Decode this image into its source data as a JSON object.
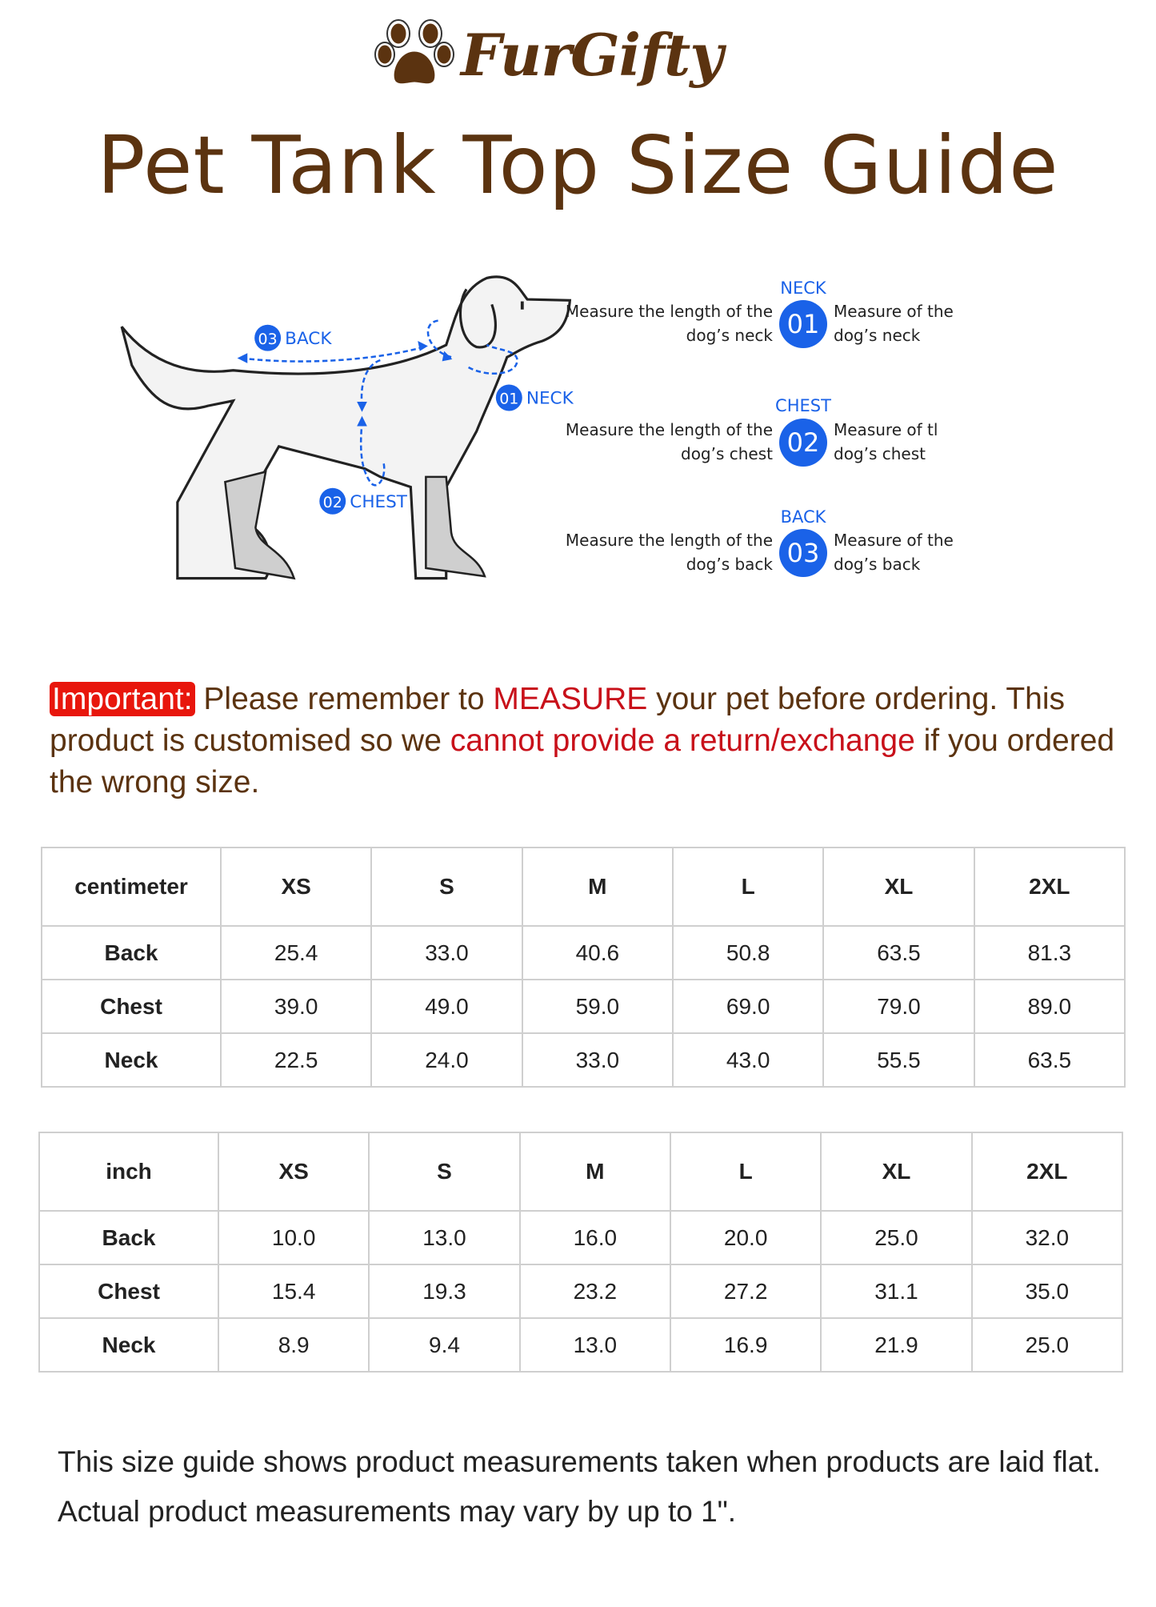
{
  "brand": {
    "name": "FurGifty",
    "icon": "paw-icon",
    "color": "#5b3310"
  },
  "title": "Pet Tank Top Size Guide",
  "diagram": {
    "labels": {
      "back": "BACK",
      "neck": "NECK",
      "chest": "CHEST",
      "back_num": "03",
      "neck_num": "01",
      "chest_num": "02"
    },
    "accent": "#1a62e8",
    "steps": [
      {
        "label": "NECK",
        "num": "01",
        "left": "Measure the length of the dog’s neck",
        "right": "Measure of the dog’s neck"
      },
      {
        "label": "CHEST",
        "num": "02",
        "left": "Measure the length of the dog’s chest",
        "right": "Measure of tl dog’s chest"
      },
      {
        "label": "BACK",
        "num": "03",
        "left": "Measure the length of the dog’s back",
        "right": "Measure of the dog’s back"
      }
    ]
  },
  "notice": {
    "badge": "Important:",
    "t1": " Please remember to ",
    "r1": "MEASURE",
    "t2": " your pet before ordering. This product is customised so we ",
    "r2": "cannot provide a return/exchange",
    "t3": " if you ordered the wrong size.",
    "badge_color": "#e8160c",
    "highlight_color": "#c8101a"
  },
  "tables": [
    {
      "unit": "centimeter",
      "sizes": [
        "XS",
        "S",
        "M",
        "L",
        "XL",
        "2XL"
      ],
      "rows": [
        {
          "name": "Back",
          "values": [
            "25.4",
            "33.0",
            "40.6",
            "50.8",
            "63.5",
            "81.3"
          ]
        },
        {
          "name": "Chest",
          "values": [
            "39.0",
            "49.0",
            "59.0",
            "69.0",
            "79.0",
            "89.0"
          ]
        },
        {
          "name": "Neck",
          "values": [
            "22.5",
            "24.0",
            "33.0",
            "43.0",
            "55.5",
            "63.5"
          ]
        }
      ]
    },
    {
      "unit": "inch",
      "sizes": [
        "XS",
        "S",
        "M",
        "L",
        "XL",
        "2XL"
      ],
      "rows": [
        {
          "name": "Back",
          "values": [
            "10.0",
            "13.0",
            "16.0",
            "20.0",
            "25.0",
            "32.0"
          ]
        },
        {
          "name": "Chest",
          "values": [
            "15.4",
            "19.3",
            "23.2",
            "27.2",
            "31.1",
            "35.0"
          ]
        },
        {
          "name": "Neck",
          "values": [
            "8.9",
            "9.4",
            "13.0",
            "16.9",
            "21.9",
            "25.0"
          ]
        }
      ]
    }
  ],
  "footer": "This size guide shows product measurements taken when products are laid flat. Actual product measurements may vary by up to 1\"."
}
